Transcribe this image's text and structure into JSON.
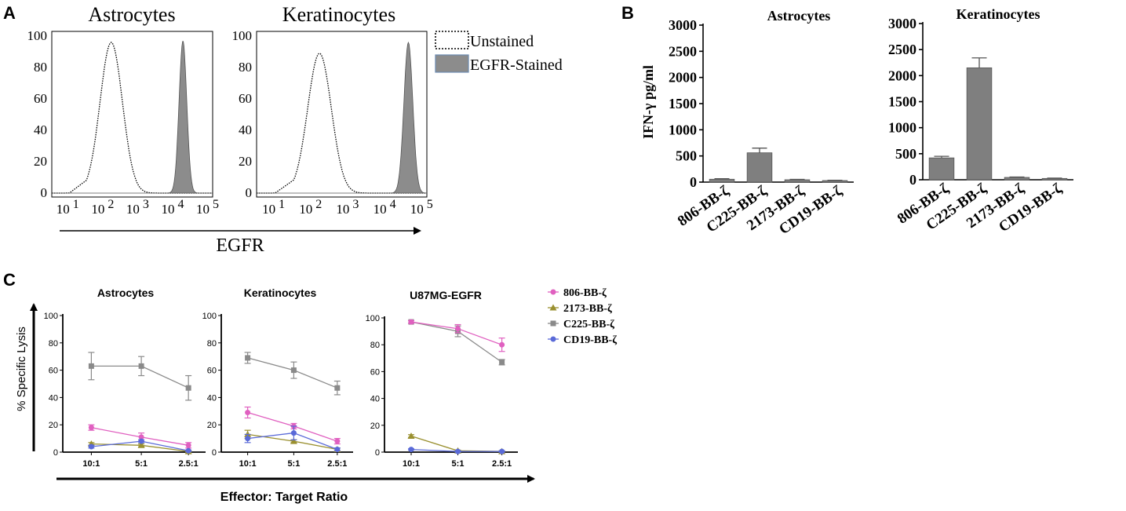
{
  "panels": {
    "A": "A",
    "B": "B",
    "C": "C"
  },
  "chart_data": [
    {
      "panel": "A",
      "type": "area",
      "title": "Astrocytes",
      "xlabel": "EGFR",
      "ylabel": "",
      "xscale": "log",
      "ylim": [
        0,
        100
      ],
      "y_ticks": [
        "0",
        "20",
        "40",
        "60",
        "80",
        "100"
      ],
      "x_ticks": [
        "10 1",
        "10 2",
        "10 3",
        "10 4",
        "10 5"
      ],
      "series": [
        {
          "name": "Unstained",
          "style": "dotted-outline",
          "peak_log10": 2.2,
          "peak": 96,
          "width": 0.32,
          "left_tail": [
            1.0,
            1.6
          ]
        },
        {
          "name": "EGFR-Stained",
          "style": "filled-gray",
          "peak_log10": 4.25,
          "peak": 97,
          "width": 0.11
        }
      ]
    },
    {
      "panel": "A",
      "type": "area",
      "title": "Keratinocytes",
      "xlabel": "EGFR",
      "ylabel": "",
      "xscale": "log",
      "ylim": [
        0,
        100
      ],
      "y_ticks": [
        "0",
        "20",
        "40",
        "60",
        "80",
        "100"
      ],
      "x_ticks": [
        "10 1",
        "10 2",
        "10 3",
        "10 4",
        "10 5"
      ],
      "series": [
        {
          "name": "Unstained",
          "style": "dotted-outline",
          "peak_log10": 2.2,
          "peak": 89,
          "width": 0.32,
          "left_tail": [
            1.0,
            1.6
          ]
        },
        {
          "name": "EGFR-Stained",
          "style": "filled-gray",
          "peak_log10": 4.6,
          "peak": 96,
          "width": 0.12
        }
      ]
    },
    {
      "panel": "B",
      "type": "bar",
      "title": "Astrocytes",
      "ylabel": "IFN-γ pg/ml",
      "ylim": [
        0,
        3000
      ],
      "y_ticks": [
        "0",
        "500",
        "1000",
        "1500",
        "2000",
        "2500",
        "3000"
      ],
      "categories": [
        "806-BB-ζ",
        "C225-BB-ζ",
        "2173-BB-ζ",
        "CD19-BB-ζ"
      ],
      "values": [
        55,
        560,
        45,
        30
      ],
      "errors": [
        10,
        90,
        8,
        6
      ]
    },
    {
      "panel": "B",
      "type": "bar",
      "title": "Keratinocytes",
      "ylabel": "",
      "ylim": [
        0,
        3000
      ],
      "y_ticks": [
        "0",
        "500",
        "1000",
        "1500",
        "2000",
        "2500",
        "3000"
      ],
      "categories": [
        "806-BB-ζ",
        "C225-BB-ζ",
        "2173-BB-ζ",
        "CD19-BB-ζ"
      ],
      "values": [
        420,
        2150,
        45,
        25
      ],
      "errors": [
        30,
        190,
        8,
        6
      ]
    },
    {
      "panel": "C",
      "type": "line",
      "title": "Astrocytes",
      "ylabel": "% Specific Lysis",
      "xlabel": "Effector: Target Ratio",
      "ylim": [
        0,
        100
      ],
      "y_ticks": [
        "0",
        "20",
        "40",
        "60",
        "80",
        "100"
      ],
      "categories": [
        "10:1",
        "5:1",
        "2.5:1"
      ],
      "series": [
        {
          "name": "806-BB-ζ",
          "values": [
            18,
            11,
            5
          ],
          "errors": [
            2,
            3,
            2
          ]
        },
        {
          "name": "2173-BB-ζ",
          "values": [
            6,
            5,
            0.5
          ],
          "errors": [
            1,
            1,
            0.5
          ]
        },
        {
          "name": "C225-BB-ζ",
          "values": [
            63,
            63,
            47
          ],
          "errors": [
            10,
            7,
            9
          ]
        },
        {
          "name": "CD19-BB-ζ",
          "values": [
            4,
            8,
            1
          ],
          "errors": [
            1,
            1,
            0.5
          ]
        }
      ]
    },
    {
      "panel": "C",
      "type": "line",
      "title": "Keratinocytes",
      "ylabel": "",
      "xlabel": "Effector: Target Ratio",
      "ylim": [
        0,
        100
      ],
      "y_ticks": [
        "0",
        "20",
        "40",
        "60",
        "80",
        "100"
      ],
      "categories": [
        "10:1",
        "5:1",
        "2.5:1"
      ],
      "series": [
        {
          "name": "806-BB-ζ",
          "values": [
            29,
            19,
            8
          ],
          "errors": [
            4,
            2,
            2
          ]
        },
        {
          "name": "2173-BB-ζ",
          "values": [
            13,
            8,
            2
          ],
          "errors": [
            3,
            1,
            1
          ]
        },
        {
          "name": "C225-BB-ζ",
          "values": [
            69,
            60,
            47
          ],
          "errors": [
            4,
            6,
            5
          ]
        },
        {
          "name": "CD19-BB-ζ",
          "values": [
            10,
            14,
            2
          ],
          "errors": [
            3,
            5,
            1
          ]
        }
      ]
    },
    {
      "panel": "C",
      "type": "line",
      "title": "U87MG-EGFR",
      "ylabel": "",
      "xlabel": "Effector: Target Ratio",
      "ylim": [
        0,
        100
      ],
      "y_ticks": [
        "0",
        "20",
        "40",
        "60",
        "80",
        "100"
      ],
      "categories": [
        "10:1",
        "5:1",
        "2.5:1"
      ],
      "series": [
        {
          "name": "806-BB-ζ",
          "values": [
            97,
            92,
            80
          ],
          "errors": [
            1,
            3,
            5
          ]
        },
        {
          "name": "2173-BB-ζ",
          "values": [
            12,
            1,
            0.5
          ],
          "errors": [
            1,
            0.5,
            0.5
          ]
        },
        {
          "name": "C225-BB-ζ",
          "values": [
            97,
            90,
            67
          ],
          "errors": [
            1,
            4,
            2
          ]
        },
        {
          "name": "CD19-BB-ζ",
          "values": [
            2,
            0.5,
            0.5
          ],
          "errors": [
            0.5,
            0.5,
            0.5
          ]
        }
      ]
    }
  ],
  "legend_A": [
    {
      "label": "Unstained",
      "style": "dotted"
    },
    {
      "label": "EGFR-Stained",
      "style": "filled"
    }
  ],
  "legend_C": [
    {
      "label": "806-BB-ζ",
      "color": "#e060c0",
      "marker": "circle"
    },
    {
      "label": "2173-BB-ζ",
      "color": "#9a9030",
      "marker": "triangle"
    },
    {
      "label": "C225-BB-ζ",
      "color": "#8a8a8a",
      "marker": "square"
    },
    {
      "label": "CD19-BB-ζ",
      "color": "#5a6ad8",
      "marker": "circle"
    }
  ],
  "colors": {
    "bar": "#7f7f7f",
    "stained": "#8c8c8c",
    "806": "#e060c0",
    "2173": "#9a9030",
    "C225": "#8a8a8a",
    "CD19": "#5a6ad8"
  }
}
